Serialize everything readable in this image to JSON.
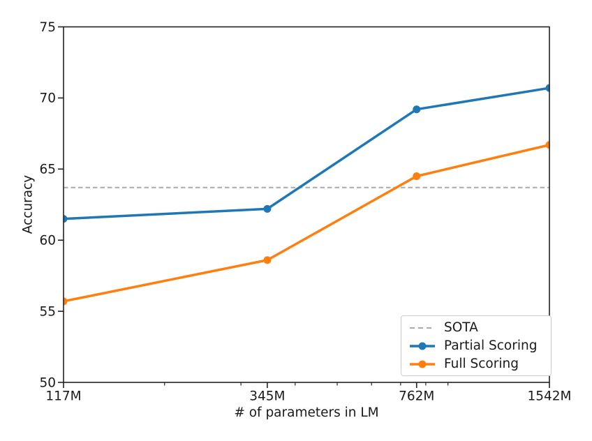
{
  "chart_data": {
    "type": "line",
    "title": "",
    "xlabel": "# of parameters in LM",
    "ylabel": "Accuracy",
    "x_scale": "log",
    "x": [
      117,
      345,
      762,
      1542
    ],
    "x_tick_labels": [
      "117M",
      "345M",
      "762M",
      "1542M"
    ],
    "x_minor_ticks": [
      200,
      300,
      400,
      500,
      600,
      700,
      800,
      900
    ],
    "xlim": [
      117,
      1542
    ],
    "y_ticks": [
      50,
      55,
      60,
      65,
      70,
      75
    ],
    "ylim": [
      50,
      75
    ],
    "grid": false,
    "reference_lines": [
      {
        "name": "SOTA",
        "value": 63.7,
        "color": "#aaaaaa",
        "style": "dashed"
      }
    ],
    "series": [
      {
        "name": "Partial Scoring",
        "values": [
          61.5,
          62.2,
          69.2,
          70.7
        ],
        "color": "#1f77b4",
        "marker": "circle"
      },
      {
        "name": "Full Scoring",
        "values": [
          55.7,
          58.6,
          64.5,
          66.7
        ],
        "color": "#ff7f0e",
        "marker": "circle"
      }
    ],
    "legend": {
      "position": "lower right",
      "entries": [
        "SOTA",
        "Partial Scoring",
        "Full Scoring"
      ]
    }
  },
  "colors": {
    "axis": "#222222",
    "text": "#1a1a1a",
    "legend_border": "#cccccc",
    "background": "#ffffff"
  }
}
